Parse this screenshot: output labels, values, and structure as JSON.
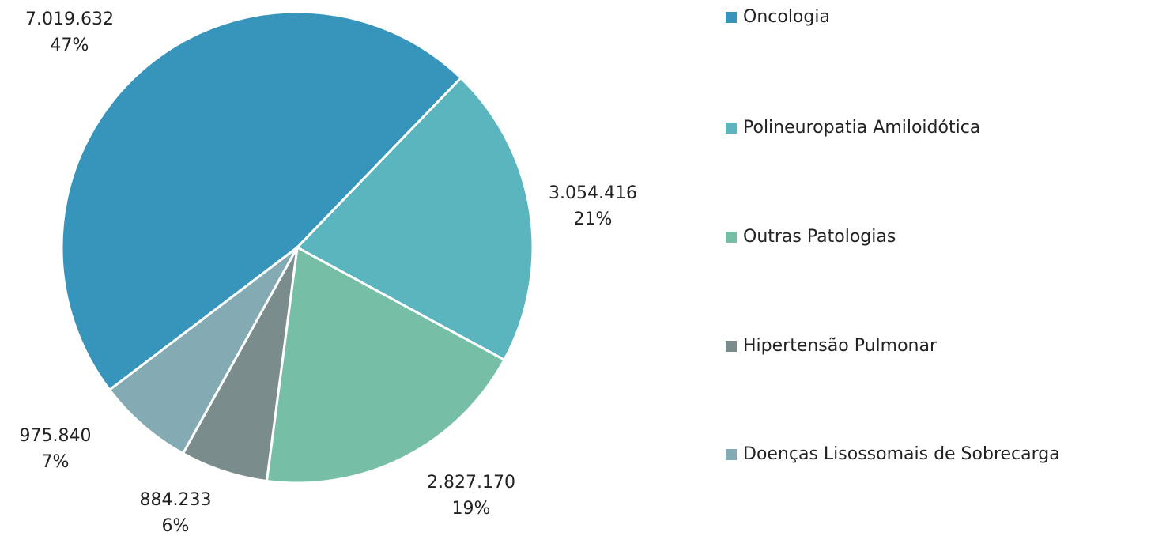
{
  "chart_data": {
    "type": "pie",
    "categories": [
      "Oncologia",
      "Polineuropatia Amiloidótica",
      "Outras Patologias",
      "Hipertensão Pulmonar",
      "Doenças Lisossomais de Sobrecarga"
    ],
    "values": [
      7019632,
      3054416,
      2827170,
      884233,
      975840
    ],
    "value_labels": [
      "7.019.632",
      "3.054.416",
      "2.827.170",
      "884.233",
      "975.840"
    ],
    "percentages": [
      47,
      21,
      19,
      6,
      7
    ],
    "percentage_labels": [
      "47%",
      "21%",
      "19%",
      "6%",
      "7%"
    ],
    "colors": [
      "#3795bb",
      "#5ab5bf",
      "#77bea6",
      "#7a8c8c",
      "#84aab3"
    ],
    "legend": "right"
  }
}
